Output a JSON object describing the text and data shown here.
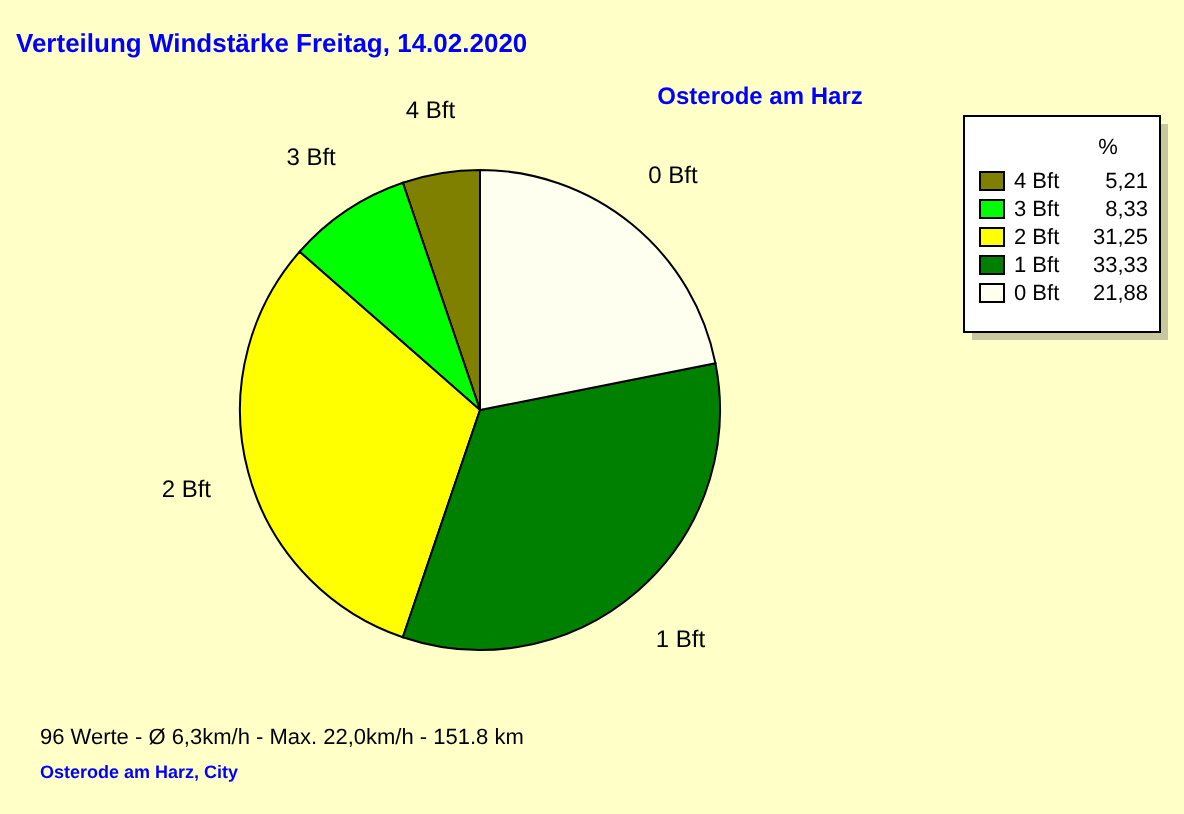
{
  "chart_data": {
    "type": "pie",
    "title": "Verteilung Windstärke  Freitag, 14.02.2020",
    "subtitle": "Osterode am Harz",
    "categories": [
      "4 Bft",
      "3 Bft",
      "2 Bft",
      "1 Bft",
      "0 Bft"
    ],
    "values": [
      5.21,
      8.33,
      31.25,
      33.33,
      21.88
    ],
    "value_labels": [
      "5,21",
      "8,33",
      "31,25",
      "33,33",
      "21,88"
    ],
    "colors": [
      "#808000",
      "#00ff00",
      "#ffff00",
      "#008000",
      "#fffff0"
    ],
    "legend": "top right",
    "legend_title": "%",
    "annotations": [
      "96 Werte   -   Ø 6,3km/h  -  Max. 22,0km/h   -   151.8 km",
      "Osterode am Harz, City"
    ]
  }
}
